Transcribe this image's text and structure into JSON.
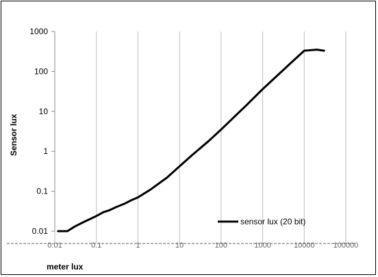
{
  "chart_data": {
    "type": "line",
    "title": "",
    "xlabel": "meter lux",
    "ylabel": "Sensor lux",
    "x_scale": "log",
    "y_scale": "log",
    "xlim": [
      0.01,
      100000
    ],
    "ylim": [
      0.01,
      1000
    ],
    "x_ticks": [
      "0.01",
      "0.1",
      "1",
      "10",
      "100",
      "1000",
      "10000",
      "100000"
    ],
    "y_ticks": [
      "0.01",
      "0.1",
      "1",
      "10",
      "100",
      "1000"
    ],
    "grid": "vertical",
    "legend": "bottom-right",
    "series": [
      {
        "name": "sensor lux (20 bit)",
        "color": "#000000",
        "x": [
          0.012,
          0.02,
          0.03,
          0.05,
          0.07,
          0.1,
          0.15,
          0.2,
          0.3,
          0.5,
          0.7,
          1,
          2,
          5,
          10,
          20,
          50,
          100,
          200,
          400,
          700,
          1000,
          2000,
          5000,
          10000,
          20000,
          30000
        ],
        "y": [
          0.01,
          0.01,
          0.013,
          0.017,
          0.02,
          0.024,
          0.03,
          0.033,
          0.04,
          0.05,
          0.06,
          0.07,
          0.11,
          0.22,
          0.42,
          0.8,
          1.8,
          3.5,
          7,
          14,
          25,
          36,
          70,
          170,
          330,
          350,
          330
        ]
      }
    ]
  }
}
